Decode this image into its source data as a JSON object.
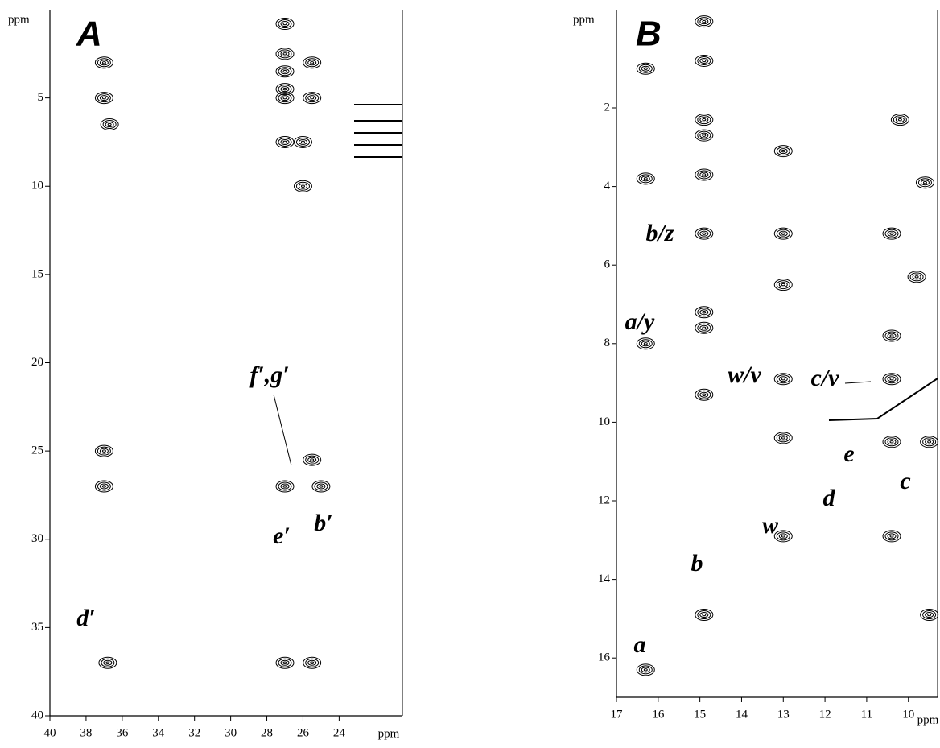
{
  "chart_data": [
    {
      "type": "contour",
      "title": "A",
      "x_label": "ppm",
      "y_label": "ppm",
      "xlim": [
        40,
        20.5
      ],
      "ylim": [
        0,
        40
      ],
      "xticks": [
        40,
        38,
        36,
        34,
        32,
        30,
        28,
        26,
        24
      ],
      "yticks": [
        5,
        10,
        15,
        20,
        25,
        30,
        35,
        40
      ],
      "x": [
        37,
        37,
        36.7,
        27,
        27,
        27,
        25.5,
        27,
        27,
        25.5,
        26,
        27,
        26,
        37,
        37,
        27,
        25.5,
        25,
        27,
        25.5,
        36.8
      ],
      "y": [
        3,
        5,
        6.5,
        0.8,
        2.5,
        3.5,
        3,
        4.5,
        5,
        5,
        7.5,
        7.5,
        10,
        25,
        27,
        27,
        25.5,
        27,
        37,
        37,
        37
      ],
      "annotations": [
        "f′,g′",
        "e′",
        "b′",
        "d′"
      ]
    },
    {
      "type": "contour",
      "title": "B",
      "x_label": "ppm",
      "y_label": "ppm",
      "xlim": [
        17,
        9.3
      ],
      "ylim": [
        -0.5,
        17
      ],
      "xticks": [
        17,
        16,
        15,
        14,
        13,
        12,
        11,
        10
      ],
      "yticks": [
        2,
        4,
        6,
        8,
        10,
        12,
        14,
        16
      ],
      "x": [
        16.3,
        14.9,
        14.9,
        14.9,
        14.9,
        16.3,
        14.9,
        13,
        14.9,
        13,
        13,
        14.9,
        14.9,
        16.3,
        13,
        14.9,
        13,
        10.4,
        10.4,
        13,
        10.4,
        14.9,
        16.3,
        9.5,
        9.5,
        10.2,
        10.4,
        10.4,
        9.8,
        9.6
      ],
      "y": [
        1,
        -0.2,
        0.8,
        2.3,
        2.7,
        3.8,
        3.7,
        3.1,
        5.2,
        5.2,
        6.5,
        7.2,
        7.6,
        8,
        8.9,
        9.3,
        10.4,
        8.9,
        10.5,
        12.9,
        12.9,
        14.9,
        16.3,
        14.9,
        10.5,
        2.3,
        5.2,
        7.8,
        6.3,
        3.9
      ],
      "annotations": [
        "b/z",
        "a/y",
        "w/v",
        "c/v",
        "e",
        "c",
        "d",
        "w",
        "b",
        "a"
      ]
    }
  ]
}
